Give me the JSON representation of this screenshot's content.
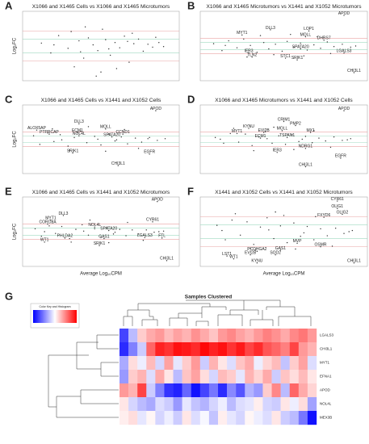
{
  "chart_data": [
    {
      "type": "scatter",
      "letter": "A",
      "title": "X1066 and X1465 Cells vs X1066 and X1465 Microtumors",
      "ylabel": "Log₂FC",
      "xlim": [
        0,
        10
      ],
      "ylim": [
        -6,
        6
      ],
      "color": "#333333",
      "hlines": [
        {
          "y": 1.2,
          "color": "#9fd9c0"
        },
        {
          "y": -1.2,
          "color": "#9fd9c0"
        },
        {
          "y": 2.6,
          "color": "#e9a3a3"
        },
        {
          "y": -2.6,
          "color": "#e9a3a3"
        }
      ],
      "x": [
        1.2,
        1.8,
        2.3,
        2.9,
        3.1,
        3.6,
        3.9,
        4.2,
        4.5,
        4.8,
        5.1,
        5.3,
        5.6,
        5.9,
        6.2,
        6.5,
        6.8,
        7.1,
        7.4,
        7.7,
        8.0,
        8.3,
        8.7,
        9.0,
        3.3,
        4.0,
        5.0,
        6.0,
        7.0,
        4.7,
        2.0,
        5.5,
        6.7,
        3.7,
        8.5
      ],
      "y": [
        0.5,
        -1.2,
        1.8,
        -0.4,
        2.5,
        0.9,
        -2.1,
        1.4,
        0.2,
        -0.8,
        2.9,
        1.1,
        -1.6,
        0.6,
        -0.3,
        1.7,
        -2.8,
        0.4,
        1.2,
        -0.9,
        0.3,
        -0.2,
        0.6,
        -0.1,
        -3.6,
        3.3,
        -4.5,
        -3.9,
        2.2,
        -5.2,
        0.2,
        -0.5,
        0.8,
        -1.0,
        1.5
      ],
      "labels": []
    },
    {
      "type": "scatter",
      "letter": "B",
      "title": "X1066 and X1465 Microtumors vs X1441 and X1052 Microtumors",
      "xlim": [
        0,
        10
      ],
      "ylim": [
        -6,
        6
      ],
      "color": "#333333",
      "hlines": [
        {
          "y": 0.6,
          "color": "#9fd9c0"
        },
        {
          "y": -0.6,
          "color": "#9fd9c0"
        },
        {
          "y": 1.3,
          "color": "#e9a3a3"
        },
        {
          "y": -1.3,
          "color": "#e9a3a3"
        }
      ],
      "x": [
        0.8,
        1.3,
        1.7,
        2.2,
        2.6,
        3.0,
        3.4,
        3.8,
        4.1,
        4.5,
        4.9,
        5.2,
        5.6,
        6.0,
        6.4,
        6.8,
        7.2,
        7.6,
        8.0,
        8.5,
        9.0,
        2.8,
        3.6,
        4.4,
        5.4,
        6.2,
        7.0,
        7.8,
        1.5,
        9.3
      ],
      "y": [
        0.4,
        -0.8,
        0.9,
        -0.3,
        1.2,
        0.1,
        -1.1,
        0.6,
        -0.5,
        0.3,
        -0.9,
        0.8,
        -0.2,
        0.5,
        -0.7,
        0.2,
        -0.4,
        0.7,
        -0.1,
        0.3,
        -0.2,
        -1.9,
        1.8,
        -1.5,
        2.0,
        -1.7,
        1.6,
        -1.3,
        0.1,
        0.0
      ],
      "labels": [
        {
          "text": "APOD",
          "x": 8.6,
          "y": 5.3
        },
        {
          "text": "DLL3",
          "x": 4.2,
          "y": 2.8
        },
        {
          "text": "MYT1",
          "x": 2.5,
          "y": 1.9
        },
        {
          "text": "LOP1",
          "x": 6.5,
          "y": 2.6
        },
        {
          "text": "MOLL",
          "x": 6.3,
          "y": 1.6
        },
        {
          "text": "DHRS7",
          "x": 7.4,
          "y": 1.0
        },
        {
          "text": "SPATA20",
          "x": 6.0,
          "y": -0.5
        },
        {
          "text": "SRIK1",
          "x": 5.8,
          "y": -2.4
        },
        {
          "text": "STC1",
          "x": 5.1,
          "y": -2.1
        },
        {
          "text": "LGALS3",
          "x": 8.6,
          "y": -1.2
        },
        {
          "text": "IER3",
          "x": 2.9,
          "y": -1.2
        },
        {
          "text": "TLN2",
          "x": 3.1,
          "y": -1.9
        },
        {
          "text": "CHI3L1",
          "x": 9.2,
          "y": -4.6
        }
      ]
    },
    {
      "type": "scatter",
      "letter": "C",
      "title": "X1066 and X1465 Cells vs X1441 and X1052 Cells",
      "ylabel": "Log₂FC",
      "xlim": [
        0,
        10
      ],
      "ylim": [
        -6,
        6
      ],
      "color": "#333333",
      "hlines": [
        {
          "y": 0.6,
          "color": "#9fd9c0"
        },
        {
          "y": -0.6,
          "color": "#9fd9c0"
        },
        {
          "y": 1.3,
          "color": "#e9a3a3"
        },
        {
          "y": -1.3,
          "color": "#e9a3a3"
        }
      ],
      "x": [
        0.7,
        1.1,
        1.6,
        2.0,
        2.4,
        2.9,
        3.3,
        3.7,
        4.1,
        4.6,
        5.0,
        5.5,
        5.9,
        6.3,
        6.7,
        7.2,
        7.6,
        8.1,
        8.6,
        9.1,
        1.9,
        3.0,
        4.2,
        5.3,
        6.5,
        7.4,
        2.5,
        4.8,
        6.0,
        8.0
      ],
      "y": [
        0.6,
        -0.9,
        1.1,
        -0.4,
        0.8,
        -1.2,
        0.3,
        1.4,
        -0.6,
        0.5,
        -1.0,
        0.9,
        -0.3,
        0.4,
        -0.8,
        0.2,
        -0.5,
        0.3,
        -0.2,
        0.1,
        1.8,
        -1.9,
        2.2,
        -2.1,
        1.7,
        -1.6,
        -0.1,
        0.0,
        -0.1,
        0.1
      ],
      "labels": [
        {
          "text": "APOD",
          "x": 8.5,
          "y": 5.0
        },
        {
          "text": "DLL3",
          "x": 3.6,
          "y": 2.7
        },
        {
          "text": "PTPRCAP",
          "x": 1.7,
          "y": 0.9
        },
        {
          "text": "ALOX5AP",
          "x": 0.9,
          "y": 1.6
        },
        {
          "text": "ECM1",
          "x": 3.5,
          "y": 1.2
        },
        {
          "text": "NOL4L",
          "x": 3.6,
          "y": 0.6
        },
        {
          "text": "MOLL",
          "x": 5.3,
          "y": 1.8
        },
        {
          "text": "CCND1",
          "x": 6.4,
          "y": 0.9
        },
        {
          "text": "SPATA20",
          "x": 5.7,
          "y": 0.4
        },
        {
          "text": "SRIK1",
          "x": 3.2,
          "y": -2.4
        },
        {
          "text": "EGFR",
          "x": 8.1,
          "y": -2.6
        },
        {
          "text": "CHI3L1",
          "x": 6.1,
          "y": -4.6
        }
      ]
    },
    {
      "type": "scatter",
      "letter": "D",
      "title": "X1066 and X1465 Microtumors vs X1441 and X1052 Cells",
      "xlim": [
        0,
        10
      ],
      "ylim": [
        -6,
        6
      ],
      "color": "#333333",
      "hlines": [
        {
          "y": 0.6,
          "color": "#9fd9c0"
        },
        {
          "y": -0.6,
          "color": "#9fd9c0"
        },
        {
          "y": 1.3,
          "color": "#e9a3a3"
        },
        {
          "y": -1.3,
          "color": "#e9a3a3"
        }
      ],
      "x": [
        0.9,
        1.4,
        1.8,
        2.3,
        2.7,
        3.1,
        3.5,
        3.9,
        4.3,
        4.7,
        5.1,
        5.5,
        5.9,
        6.3,
        6.7,
        7.1,
        7.5,
        8.0,
        8.5,
        9.0,
        2.0,
        3.2,
        4.4,
        5.6,
        6.8,
        7.8,
        1.2,
        4.0,
        6.1,
        8.8
      ],
      "y": [
        0.3,
        -0.7,
        1.0,
        -0.5,
        0.9,
        -1.1,
        0.4,
        1.3,
        -0.7,
        0.6,
        -0.9,
        0.8,
        -0.4,
        0.5,
        -0.6,
        0.2,
        -0.3,
        0.4,
        -0.2,
        0.1,
        1.9,
        -2.0,
        2.1,
        -1.8,
        1.5,
        -1.4,
        0.0,
        0.1,
        0.0,
        -0.1
      ],
      "labels": [
        {
          "text": "APOD",
          "x": 8.6,
          "y": 5.0
        },
        {
          "text": "KYNU",
          "x": 2.9,
          "y": 1.9
        },
        {
          "text": "MYT1",
          "x": 2.2,
          "y": 1.0
        },
        {
          "text": "EVI2B",
          "x": 3.8,
          "y": 1.2
        },
        {
          "text": "ECM1",
          "x": 3.6,
          "y": 0.2
        },
        {
          "text": "TSPAN1",
          "x": 5.2,
          "y": 0.3
        },
        {
          "text": "MOLL",
          "x": 4.9,
          "y": 1.5
        },
        {
          "text": "PMP2",
          "x": 5.7,
          "y": 2.4
        },
        {
          "text": "CRIM1",
          "x": 5.0,
          "y": 3.1
        },
        {
          "text": "MX1",
          "x": 6.6,
          "y": 1.2
        },
        {
          "text": "IER3",
          "x": 4.6,
          "y": -2.3
        },
        {
          "text": "NDRG1",
          "x": 6.3,
          "y": -1.6
        },
        {
          "text": "EGFR",
          "x": 8.4,
          "y": -3.3
        },
        {
          "text": "CHI3L1",
          "x": 6.3,
          "y": -4.8
        }
      ]
    },
    {
      "type": "scatter",
      "letter": "E",
      "title": "X1066 and X1465 Cells vs X1441 and X1052 Microtumors",
      "ylabel": "Log₂FC",
      "xlabel": "Average Log₁₀CPM",
      "xlim": [
        0,
        10
      ],
      "ylim": [
        -6,
        6
      ],
      "color": "#333333",
      "hlines": [
        {
          "y": 0.6,
          "color": "#9fd9c0"
        },
        {
          "y": -0.6,
          "color": "#9fd9c0"
        },
        {
          "y": 1.3,
          "color": "#e9a3a3"
        },
        {
          "y": -1.3,
          "color": "#e9a3a3"
        }
      ],
      "x": [
        0.8,
        1.2,
        1.7,
        2.1,
        2.5,
        3.0,
        3.4,
        3.8,
        4.2,
        4.6,
        5.0,
        5.4,
        5.8,
        6.2,
        6.6,
        7.0,
        7.4,
        7.9,
        8.4,
        9.0,
        1.9,
        3.1,
        4.3,
        5.5,
        6.7,
        7.7,
        1.4,
        3.9,
        5.9,
        8.7
      ],
      "y": [
        0.5,
        -0.8,
        1.0,
        -0.3,
        0.9,
        -1.2,
        0.4,
        1.2,
        -0.6,
        0.5,
        -1.0,
        0.7,
        -0.4,
        0.4,
        -0.7,
        0.3,
        -0.4,
        0.3,
        -0.1,
        0.1,
        1.7,
        -1.8,
        2.0,
        -1.9,
        1.6,
        -1.5,
        0.0,
        0.1,
        -0.1,
        0.0
      ],
      "labels": [
        {
          "text": "APOD",
          "x": 8.6,
          "y": 5.2
        },
        {
          "text": "DLL3",
          "x": 2.6,
          "y": 2.8
        },
        {
          "text": "MYT1",
          "x": 1.8,
          "y": 2.0
        },
        {
          "text": "CORO2A",
          "x": 1.6,
          "y": 1.3
        },
        {
          "text": "NOL4L",
          "x": 4.6,
          "y": 0.8
        },
        {
          "text": "SPATA20",
          "x": 5.5,
          "y": 0.2
        },
        {
          "text": "CYR61",
          "x": 8.3,
          "y": 1.7
        },
        {
          "text": "PHLDA2",
          "x": 2.7,
          "y": -1.1
        },
        {
          "text": "WT1",
          "x": 1.4,
          "y": -1.8
        },
        {
          "text": "GAS1",
          "x": 5.2,
          "y": -1.2
        },
        {
          "text": "LGALS3",
          "x": 7.8,
          "y": -1.0
        },
        {
          "text": "FTL",
          "x": 8.9,
          "y": -1.1
        },
        {
          "text": "SRIK1",
          "x": 4.9,
          "y": -2.4
        },
        {
          "text": "CHI3L1",
          "x": 9.2,
          "y": -5.0
        }
      ]
    },
    {
      "type": "scatter",
      "letter": "F",
      "title": "X1441 and X1052 Cells vs X1441 and X1052 Microtumors",
      "xlabel": "Average Log₁₀CPM",
      "xlim": [
        0,
        10
      ],
      "ylim": [
        -6,
        6
      ],
      "color": "#333333",
      "hlines": [
        {
          "y": 1.2,
          "color": "#9fd9c0"
        },
        {
          "y": -1.2,
          "color": "#9fd9c0"
        },
        {
          "y": 2.6,
          "color": "#e9a3a3"
        },
        {
          "y": -2.6,
          "color": "#e9a3a3"
        }
      ],
      "x": [
        1.0,
        1.5,
        1.9,
        2.4,
        2.8,
        3.2,
        3.6,
        4.0,
        4.4,
        4.8,
        5.2,
        5.6,
        6.0,
        6.4,
        6.8,
        7.2,
        7.6,
        8.1,
        8.6,
        9.1,
        2.1,
        3.3,
        4.5,
        5.7,
        6.9,
        7.9,
        1.3,
        4.1,
        6.2,
        8.9,
        5.0,
        3.0
      ],
      "y": [
        1.1,
        -1.4,
        2.0,
        -0.6,
        1.7,
        -2.2,
        0.8,
        2.4,
        -1.2,
        1.0,
        -1.9,
        1.5,
        -0.8,
        0.9,
        -1.4,
        0.5,
        -0.7,
        0.6,
        -0.3,
        0.2,
        3.1,
        -3.2,
        3.4,
        -3.0,
        2.6,
        -2.5,
        0.2,
        0.3,
        -0.2,
        0.0,
        2.8,
        -2.9
      ],
      "labels": [
        {
          "text": "CYR61",
          "x": 8.2,
          "y": 5.3
        },
        {
          "text": "OLIG1",
          "x": 8.2,
          "y": 4.0
        },
        {
          "text": "OLIG2",
          "x": 8.5,
          "y": 3.0
        },
        {
          "text": "FXYD6",
          "x": 7.4,
          "y": 2.5
        },
        {
          "text": "MVP",
          "x": 5.8,
          "y": -2.0
        },
        {
          "text": "OSMR",
          "x": 7.2,
          "y": -2.6
        },
        {
          "text": "GAS1",
          "x": 4.8,
          "y": -3.2
        },
        {
          "text": "PCDHGA2",
          "x": 3.4,
          "y": -3.4
        },
        {
          "text": "SOD2",
          "x": 4.5,
          "y": -4.0
        },
        {
          "text": "EVI2B",
          "x": 3.0,
          "y": -4.0
        },
        {
          "text": "LST1",
          "x": 1.6,
          "y": -4.2
        },
        {
          "text": "WT1",
          "x": 2.0,
          "y": -4.7
        },
        {
          "text": "KYNU",
          "x": 3.4,
          "y": -5.4
        },
        {
          "text": "CHI3L1",
          "x": 9.2,
          "y": -5.4
        }
      ]
    },
    {
      "type": "heatmap",
      "letter": "G",
      "title": "Samples Clustered",
      "key_title": "Color Key and Histogram",
      "zlim": [
        -3,
        3
      ],
      "colors": [
        "#0000ff",
        "#ffffff",
        "#ff0000"
      ],
      "rows": [
        "LGALS3",
        "CHI3L1",
        "MYT1",
        "EFNA1",
        "APOD",
        "NOL4L",
        "MEX3B"
      ],
      "values": [
        [
          -2.2,
          -0.8,
          0.6,
          1.0,
          1.2,
          0.8,
          1.1,
          0.9,
          1.3,
          1.0,
          0.7,
          1.2,
          1.4,
          1.1,
          0.9,
          1.2,
          1.5,
          1.3,
          1.0,
          1.4,
          1.6,
          1.2
        ],
        [
          -2.5,
          -1.5,
          -0.6,
          1.8,
          2.6,
          2.4,
          2.8,
          2.7,
          2.5,
          2.9,
          2.6,
          2.8,
          2.4,
          2.7,
          2.2,
          2.5,
          2.0,
          1.8,
          1.5,
          2.2,
          1.2,
          0.9
        ],
        [
          -1.0,
          0.4,
          -0.2,
          0.8,
          -0.5,
          1.1,
          -0.3,
          0.6,
          1.2,
          -0.6,
          0.9,
          0.3,
          -0.4,
          0.7,
          1.0,
          -0.2,
          0.5,
          0.8,
          -0.7,
          0.6,
          1.1,
          -0.4
        ],
        [
          -1.2,
          0.6,
          0.9,
          -0.4,
          1.0,
          0.3,
          -0.8,
          0.7,
          1.1,
          0.4,
          -0.5,
          0.8,
          0.6,
          -0.3,
          0.9,
          0.5,
          1.0,
          -0.6,
          0.7,
          0.4,
          0.8,
          0.3
        ],
        [
          1.2,
          0.9,
          2.2,
          -0.6,
          -1.5,
          -2.4,
          -2.6,
          -1.8,
          -2.8,
          -2.2,
          -1.6,
          -2.5,
          -1.4,
          -2.0,
          -0.9,
          -1.2,
          0.6,
          1.4,
          -0.8,
          1.8,
          1.0,
          0.5
        ],
        [
          0.3,
          -0.5,
          -0.8,
          -1.0,
          -0.4,
          -0.6,
          -1.2,
          -0.3,
          -0.7,
          -0.9,
          -0.5,
          -0.2,
          -0.8,
          -0.4,
          -0.3,
          0.2,
          -0.5,
          -0.6,
          0.3,
          -0.2,
          0.4,
          -1.1
        ],
        [
          0.2,
          0.4,
          -0.3,
          0.1,
          -0.5,
          -0.2,
          -0.6,
          0.3,
          -0.4,
          -0.1,
          -0.7,
          0.2,
          -0.3,
          -0.5,
          0.1,
          -0.2,
          -0.4,
          0.3,
          -0.6,
          -0.8,
          -1.6,
          -2.8
        ]
      ]
    }
  ]
}
